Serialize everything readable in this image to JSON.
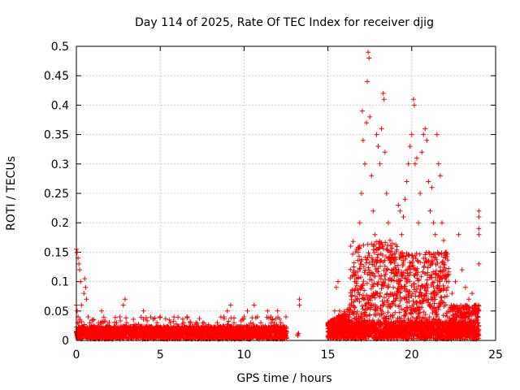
{
  "chart_data": {
    "type": "scatter",
    "title": "Day 114 of 2025, Rate Of TEC Index for receiver djig",
    "xlabel": "GPS time / hours",
    "ylabel": "ROTI / TECUs",
    "xlim": [
      0,
      25
    ],
    "ylim": [
      0,
      0.5
    ],
    "xticks": [
      0,
      5,
      10,
      15,
      20,
      25
    ],
    "xtick_labels": [
      "0",
      "5",
      "10",
      "15",
      "20",
      "25"
    ],
    "yticks": [
      0,
      0.05,
      0.1,
      0.15,
      0.2,
      0.25,
      0.3,
      0.35,
      0.4,
      0.45,
      0.5
    ],
    "ytick_labels": [
      "0",
      "0.05",
      "0.1",
      "0.15",
      "0.2",
      "0.25",
      "0.3",
      "0.35",
      "0.4",
      "0.45",
      "0.5"
    ],
    "grid": true,
    "marker": "+",
    "series_color": "#ff0000",
    "series": [
      {
        "name": "ROTI",
        "points": [
          [
            0.0,
            0.155
          ],
          [
            0.05,
            0.15
          ],
          [
            0.1,
            0.14
          ],
          [
            0.15,
            0.13
          ],
          [
            0.2,
            0.12
          ],
          [
            0.25,
            0.1
          ],
          [
            0.3,
            0.06
          ],
          [
            0.0,
            0.06
          ],
          [
            0.05,
            0.05
          ],
          [
            0.1,
            0.04
          ],
          [
            0.15,
            0.03
          ],
          [
            0.2,
            0.02
          ],
          [
            0.3,
            0.01
          ],
          [
            0.4,
            0.02
          ],
          [
            0.45,
            0.08
          ],
          [
            0.5,
            0.105
          ],
          [
            0.55,
            0.09
          ],
          [
            0.6,
            0.07
          ],
          [
            0.7,
            0.04
          ],
          [
            0.8,
            0.03
          ],
          [
            0.9,
            0.02
          ],
          [
            1.0,
            0.01
          ],
          [
            1.2,
            0.02
          ],
          [
            1.4,
            0.015
          ],
          [
            1.5,
            0.05
          ],
          [
            1.6,
            0.03
          ],
          [
            1.8,
            0.02
          ],
          [
            2.0,
            0.01
          ],
          [
            2.2,
            0.02
          ],
          [
            2.4,
            0.03
          ],
          [
            2.6,
            0.04
          ],
          [
            2.8,
            0.06
          ],
          [
            2.9,
            0.07
          ],
          [
            3.0,
            0.03
          ],
          [
            3.2,
            0.02
          ],
          [
            3.4,
            0.015
          ],
          [
            3.6,
            0.02
          ],
          [
            3.8,
            0.01
          ],
          [
            4.0,
            0.05
          ],
          [
            4.2,
            0.02
          ],
          [
            4.4,
            0.015
          ],
          [
            4.6,
            0.02
          ],
          [
            4.8,
            0.03
          ],
          [
            5.0,
            0.04
          ],
          [
            5.2,
            0.02
          ],
          [
            5.4,
            0.01
          ],
          [
            5.6,
            0.03
          ],
          [
            5.8,
            0.02
          ],
          [
            6.0,
            0.015
          ],
          [
            6.2,
            0.02
          ],
          [
            6.4,
            0.03
          ],
          [
            6.6,
            0.04
          ],
          [
            6.8,
            0.03
          ],
          [
            7.0,
            0.02
          ],
          [
            7.2,
            0.01
          ],
          [
            7.4,
            0.02
          ],
          [
            7.6,
            0.03
          ],
          [
            7.8,
            0.02
          ],
          [
            8.0,
            0.01
          ],
          [
            8.2,
            0.02
          ],
          [
            8.4,
            0.03
          ],
          [
            8.6,
            0.02
          ],
          [
            8.8,
            0.04
          ],
          [
            9.0,
            0.05
          ],
          [
            9.2,
            0.06
          ],
          [
            9.4,
            0.03
          ],
          [
            9.6,
            0.02
          ],
          [
            9.8,
            0.01
          ],
          [
            10.0,
            0.04
          ],
          [
            10.2,
            0.05
          ],
          [
            10.4,
            0.03
          ],
          [
            10.6,
            0.06
          ],
          [
            10.8,
            0.04
          ],
          [
            11.0,
            0.03
          ],
          [
            11.2,
            0.02
          ],
          [
            11.4,
            0.05
          ],
          [
            11.6,
            0.04
          ],
          [
            11.8,
            0.03
          ],
          [
            12.0,
            0.05
          ],
          [
            12.2,
            0.03
          ],
          [
            12.4,
            0.02
          ],
          [
            12.5,
            0.04
          ],
          [
            13.2,
            0.01
          ],
          [
            13.2,
            0.008
          ],
          [
            13.25,
            0.012
          ],
          [
            13.3,
            0.07
          ],
          [
            13.3,
            0.06
          ],
          [
            15.0,
            0.02
          ],
          [
            15.2,
            0.03
          ],
          [
            15.4,
            0.05
          ],
          [
            15.5,
            0.09
          ],
          [
            15.6,
            0.1
          ],
          [
            15.7,
            0.05
          ],
          [
            15.8,
            0.03
          ],
          [
            16.0,
            0.02
          ],
          [
            16.2,
            0.04
          ],
          [
            16.4,
            0.06
          ],
          [
            16.6,
            0.1
          ],
          [
            16.8,
            0.15
          ],
          [
            16.9,
            0.2
          ],
          [
            17.0,
            0.25
          ],
          [
            17.05,
            0.39
          ],
          [
            17.1,
            0.34
          ],
          [
            17.2,
            0.3
          ],
          [
            17.3,
            0.37
          ],
          [
            17.35,
            0.44
          ],
          [
            17.4,
            0.49
          ],
          [
            17.45,
            0.48
          ],
          [
            17.5,
            0.38
          ],
          [
            17.6,
            0.28
          ],
          [
            17.7,
            0.22
          ],
          [
            17.8,
            0.18
          ],
          [
            17.9,
            0.35
          ],
          [
            18.0,
            0.33
          ],
          [
            18.1,
            0.3
          ],
          [
            18.2,
            0.36
          ],
          [
            18.3,
            0.42
          ],
          [
            18.35,
            0.41
          ],
          [
            18.4,
            0.32
          ],
          [
            18.5,
            0.25
          ],
          [
            18.6,
            0.2
          ],
          [
            18.7,
            0.15
          ],
          [
            18.8,
            0.12
          ],
          [
            18.9,
            0.09
          ],
          [
            19.0,
            0.06
          ],
          [
            19.1,
            0.08
          ],
          [
            19.2,
            0.23
          ],
          [
            19.3,
            0.22
          ],
          [
            19.4,
            0.18
          ],
          [
            19.5,
            0.21
          ],
          [
            19.6,
            0.24
          ],
          [
            19.7,
            0.27
          ],
          [
            19.8,
            0.3
          ],
          [
            19.9,
            0.33
          ],
          [
            20.0,
            0.35
          ],
          [
            20.1,
            0.41
          ],
          [
            20.15,
            0.4
          ],
          [
            20.2,
            0.3
          ],
          [
            20.3,
            0.31
          ],
          [
            20.4,
            0.2
          ],
          [
            20.5,
            0.25
          ],
          [
            20.6,
            0.32
          ],
          [
            20.7,
            0.35
          ],
          [
            20.8,
            0.36
          ],
          [
            20.9,
            0.34
          ],
          [
            21.0,
            0.27
          ],
          [
            21.1,
            0.22
          ],
          [
            21.2,
            0.26
          ],
          [
            21.3,
            0.2
          ],
          [
            21.4,
            0.18
          ],
          [
            21.5,
            0.35
          ],
          [
            21.6,
            0.3
          ],
          [
            21.7,
            0.28
          ],
          [
            21.8,
            0.2
          ],
          [
            21.9,
            0.17
          ],
          [
            22.0,
            0.12
          ],
          [
            22.2,
            0.1
          ],
          [
            22.4,
            0.08
          ],
          [
            22.6,
            0.1
          ],
          [
            22.8,
            0.18
          ],
          [
            23.0,
            0.12
          ],
          [
            23.2,
            0.09
          ],
          [
            23.4,
            0.07
          ],
          [
            23.6,
            0.08
          ],
          [
            23.8,
            0.06
          ],
          [
            24.0,
            0.22
          ],
          [
            24.0,
            0.21
          ],
          [
            24.0,
            0.19
          ],
          [
            24.0,
            0.18
          ],
          [
            24.0,
            0.13
          ],
          [
            24.0,
            0.05
          ]
        ]
      }
    ]
  }
}
